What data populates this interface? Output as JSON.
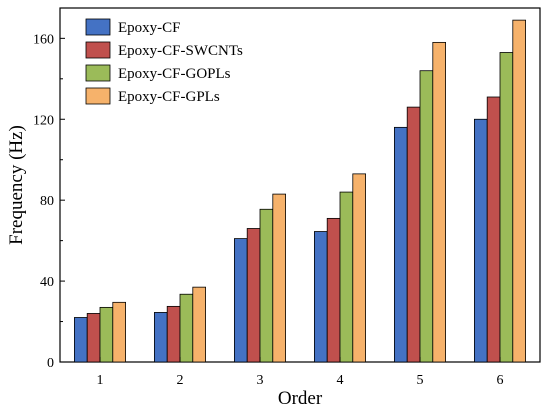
{
  "chart_data": {
    "type": "bar",
    "xlabel": "Order",
    "ylabel": "Frequency (Hz)",
    "categories": [
      "1",
      "2",
      "3",
      "4",
      "5",
      "6"
    ],
    "ylim": [
      0,
      175
    ],
    "yticks": [
      "0",
      "40",
      "80",
      "120",
      "160"
    ],
    "legend_position": "top-left",
    "grid": false,
    "series": [
      {
        "name": "Epoxy-CF",
        "color": "#4472C4",
        "values": [
          22,
          24.5,
          61,
          64.5,
          116,
          120
        ]
      },
      {
        "name": "Epoxy-CF-SWCNTs",
        "color": "#C0504D",
        "values": [
          24,
          27.5,
          66,
          71,
          126,
          131
        ]
      },
      {
        "name": "Epoxy-CF-GOPLs",
        "color": "#9BBB59",
        "values": [
          27,
          33.5,
          75.5,
          84,
          144,
          153
        ]
      },
      {
        "name": "Epoxy-CF-GPLs",
        "color": "#F6B26B",
        "values": [
          29.5,
          37,
          83,
          93,
          158,
          169
        ]
      }
    ]
  }
}
